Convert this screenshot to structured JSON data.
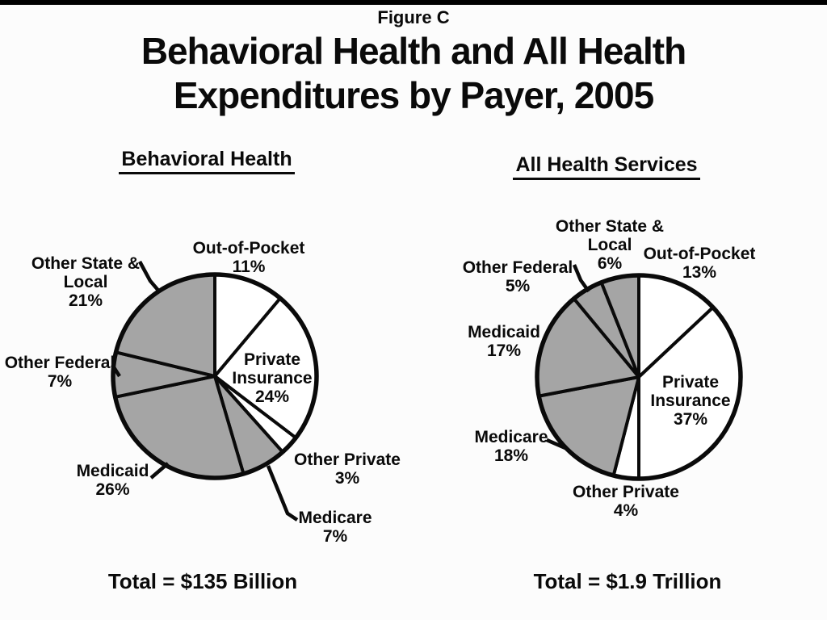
{
  "page": {
    "figure_label": "Figure C",
    "title_line1": "Behavioral Health and All Health",
    "title_line2": "Expenditures by Payer, 2005"
  },
  "colors": {
    "background": "#fcfcfc",
    "top_bar": "#000000",
    "outline": "#0a0a0a",
    "slice_white": "#ffffff",
    "slice_gray": "#a5a5a5"
  },
  "chart_data": [
    {
      "type": "pie",
      "title": "Behavioral Health",
      "total_label": "Total = $135 Billion",
      "start": "12-oclock",
      "direction": "clockwise",
      "legend_position": "outside-labels",
      "slices": [
        {
          "id": "out-of-pocket",
          "label": "Out-of-Pocket",
          "pct": "11%",
          "value": 11,
          "fill": "white"
        },
        {
          "id": "private-insurance",
          "label": "Private Insurance",
          "pct": "24%",
          "value": 24,
          "fill": "white"
        },
        {
          "id": "other-private",
          "label": "Other Private",
          "pct": "3%",
          "value": 3,
          "fill": "white"
        },
        {
          "id": "medicare",
          "label": "Medicare",
          "pct": "7%",
          "value": 7,
          "fill": "gray"
        },
        {
          "id": "medicaid",
          "label": "Medicaid",
          "pct": "26%",
          "value": 26,
          "fill": "gray"
        },
        {
          "id": "other-federal",
          "label": "Other Federal",
          "pct": "7%",
          "value": 7,
          "fill": "gray"
        },
        {
          "id": "other-state-local",
          "label": "Other State & Local",
          "pct": "21%",
          "value": 21,
          "fill": "gray"
        }
      ]
    },
    {
      "type": "pie",
      "title": "All Health Services",
      "total_label": "Total = $1.9 Trillion",
      "start": "12-oclock",
      "direction": "clockwise",
      "legend_position": "outside-labels",
      "slices": [
        {
          "id": "out-of-pocket",
          "label": "Out-of-Pocket",
          "pct": "13%",
          "value": 13,
          "fill": "white"
        },
        {
          "id": "private-insurance",
          "label": "Private Insurance",
          "pct": "37%",
          "value": 37,
          "fill": "white"
        },
        {
          "id": "other-private",
          "label": "Other Private",
          "pct": "4%",
          "value": 4,
          "fill": "white"
        },
        {
          "id": "medicare",
          "label": "Medicare",
          "pct": "18%",
          "value": 18,
          "fill": "gray"
        },
        {
          "id": "medicaid",
          "label": "Medicaid",
          "pct": "17%",
          "value": 17,
          "fill": "gray"
        },
        {
          "id": "other-federal",
          "label": "Other Federal",
          "pct": "5%",
          "value": 5,
          "fill": "gray"
        },
        {
          "id": "other-state-local",
          "label": "Other State & Local",
          "pct": "6%",
          "value": 6,
          "fill": "gray"
        }
      ]
    }
  ]
}
